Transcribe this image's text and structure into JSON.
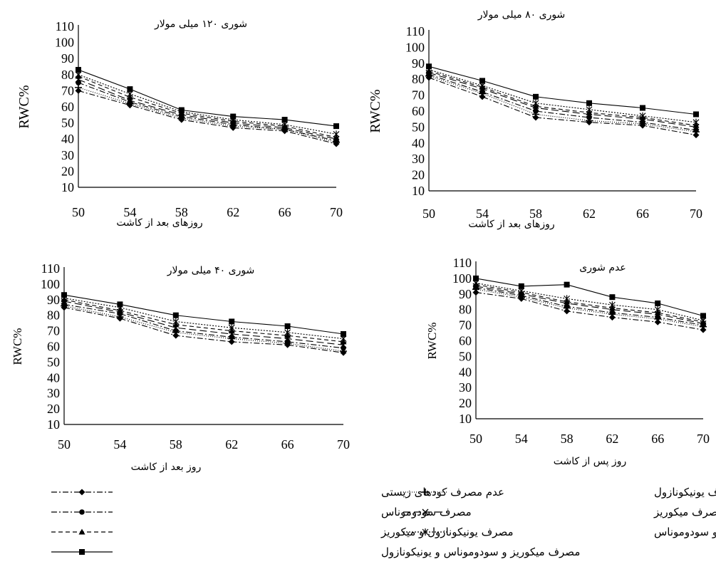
{
  "figure": {
    "legend": [
      {
        "key": "none",
        "label": "عدم مصرف کودهای زیستی",
        "dash": "8,3,2,3",
        "marker": "diamond"
      },
      {
        "key": "uni",
        "label": "مصرف یونیکونازول",
        "dash": "1,2",
        "marker": "plus"
      },
      {
        "key": "pseudo",
        "label": "مصرف سودوموناس",
        "dash": "8,3,2,3",
        "marker": "circle"
      },
      {
        "key": "myco",
        "label": "مصرف میکوریز",
        "dash": "10,5",
        "marker": "x"
      },
      {
        "key": "uni_myco",
        "label": "مصرف یونیکونازول و میکوریز",
        "dash": "6,4",
        "marker": "triangle"
      },
      {
        "key": "myco_pseudo",
        "label": "مصرف میکوریز و سودوموناس",
        "dash": "2,2",
        "marker": "star"
      },
      {
        "key": "all",
        "label": "مصرف میکوریز و سودوموناس و یونیکونازول",
        "dash": "",
        "marker": "square"
      }
    ]
  },
  "chart_data": [
    {
      "type": "line",
      "title": "شوری ۱۲۰ میلی مولار",
      "xlabel": "روزهای بعد از کاشت",
      "ylabel": "RWC%",
      "x": [
        50,
        54,
        58,
        62,
        66,
        70
      ],
      "ylim": [
        10,
        110
      ],
      "yticks": [
        10,
        20,
        30,
        40,
        50,
        60,
        70,
        80,
        90,
        100,
        110
      ],
      "series": [
        {
          "name": "عدم مصرف کودهای زیستی",
          "values": [
            70,
            61,
            52,
            47,
            45,
            37
          ]
        },
        {
          "name": "مصرف یونیکونازول",
          "values": [
            72,
            62,
            53,
            48,
            46,
            38
          ]
        },
        {
          "name": "مصرف سودوموناس",
          "values": [
            75,
            63,
            54,
            49,
            46,
            39
          ]
        },
        {
          "name": "مصرف میکوریز",
          "values": [
            77,
            64,
            55,
            50,
            47,
            40
          ]
        },
        {
          "name": "مصرف یونیکونازول و میکوریز",
          "values": [
            79,
            66,
            56,
            51,
            48,
            41
          ]
        },
        {
          "name": "مصرف میکوریز و سودوموناس",
          "values": [
            80,
            68,
            57,
            52,
            49,
            43
          ]
        },
        {
          "name": "مصرف میکوریز و سودوموناس و یونیکونازول",
          "values": [
            83,
            71,
            58,
            54,
            52,
            48
          ]
        }
      ]
    },
    {
      "type": "line",
      "title": "شوری ۸۰ میلی مولار",
      "xlabel": "روزهای بعد از کاشت",
      "ylabel": "RWC%",
      "x": [
        50,
        54,
        58,
        62,
        66,
        70
      ],
      "ylim": [
        10,
        110
      ],
      "yticks": [
        10,
        20,
        30,
        40,
        50,
        60,
        70,
        80,
        90,
        100,
        110
      ],
      "series": [
        {
          "name": "عدم مصرف کودهای زیستی",
          "values": [
            81,
            69,
            56,
            53,
            51,
            45
          ]
        },
        {
          "name": "مصرف یونیکونازول",
          "values": [
            82,
            71,
            58,
            54,
            52,
            47
          ]
        },
        {
          "name": "مصرف سودوموناس",
          "values": [
            83,
            72,
            60,
            56,
            53,
            48
          ]
        },
        {
          "name": "مصرف میکوریز",
          "values": [
            84,
            74,
            62,
            58,
            55,
            50
          ]
        },
        {
          "name": "مصرف یونیکونازول و میکوریز",
          "values": [
            85,
            75,
            63,
            59,
            56,
            51
          ]
        },
        {
          "name": "مصرف میکوریز و سودوموناس",
          "values": [
            86,
            76,
            65,
            61,
            57,
            53
          ]
        },
        {
          "name": "مصرف میکوریز و سودوموناس و یونیکونازول",
          "values": [
            88,
            79,
            69,
            65,
            62,
            58
          ]
        }
      ]
    },
    {
      "type": "line",
      "title": "شوری ۴۰ میلی مولار",
      "xlabel": "روز بعد از کاشت",
      "ylabel": "RWC%",
      "x": [
        50,
        54,
        58,
        62,
        66,
        70
      ],
      "ylim": [
        10,
        110
      ],
      "yticks": [
        10,
        20,
        30,
        40,
        50,
        60,
        70,
        80,
        90,
        100,
        110
      ],
      "series": [
        {
          "name": "عدم مصرف کودهای زیستی",
          "values": [
            85,
            78,
            67,
            63,
            61,
            56
          ]
        },
        {
          "name": "مصرف یونیکونازول",
          "values": [
            86,
            79,
            69,
            65,
            62,
            57
          ]
        },
        {
          "name": "مصرف سودوموناس",
          "values": [
            87,
            81,
            70,
            66,
            63,
            59
          ]
        },
        {
          "name": "مصرف میکوریز",
          "values": [
            89,
            82,
            72,
            68,
            65,
            61
          ]
        },
        {
          "name": "مصرف یونیکونازول و میکوریز",
          "values": [
            90,
            83,
            74,
            70,
            67,
            63
          ]
        },
        {
          "name": "مصرف میکوریز و سودوموناس",
          "values": [
            91,
            85,
            76,
            72,
            69,
            65
          ]
        },
        {
          "name": "مصرف میکوریز و سودوموناس و یونیکونازول",
          "values": [
            93,
            87,
            80,
            76,
            73,
            68
          ]
        }
      ]
    },
    {
      "type": "line",
      "title": "عدم شوری",
      "xlabel": "روز پس از کاشت",
      "ylabel": "RWC%",
      "x": [
        50,
        54,
        58,
        62,
        66,
        70
      ],
      "ylim": [
        10,
        110
      ],
      "yticks": [
        10,
        20,
        30,
        40,
        50,
        60,
        70,
        80,
        90,
        100,
        110
      ],
      "series": [
        {
          "name": "عدم مصرف کودهای زیستی",
          "values": [
            91,
            87,
            79,
            75,
            72,
            67
          ]
        },
        {
          "name": "مصرف یونیکونازول",
          "values": [
            93,
            88,
            81,
            77,
            74,
            69
          ]
        },
        {
          "name": "مصرف سودوموناس",
          "values": [
            94,
            89,
            82,
            78,
            75,
            70
          ]
        },
        {
          "name": "مصرف میکوریز",
          "values": [
            95,
            90,
            84,
            80,
            77,
            71
          ]
        },
        {
          "name": "مصرف یونیکونازول و میکوریز",
          "values": [
            96,
            91,
            85,
            81,
            78,
            72
          ]
        },
        {
          "name": "مصرف میکوریز و سودوموناس",
          "values": [
            97,
            92,
            87,
            83,
            80,
            73
          ]
        },
        {
          "name": "مصرف میکوریز و سودوموناس و یونیکونازول",
          "values": [
            100,
            95,
            96,
            88,
            84,
            76
          ]
        }
      ]
    }
  ]
}
